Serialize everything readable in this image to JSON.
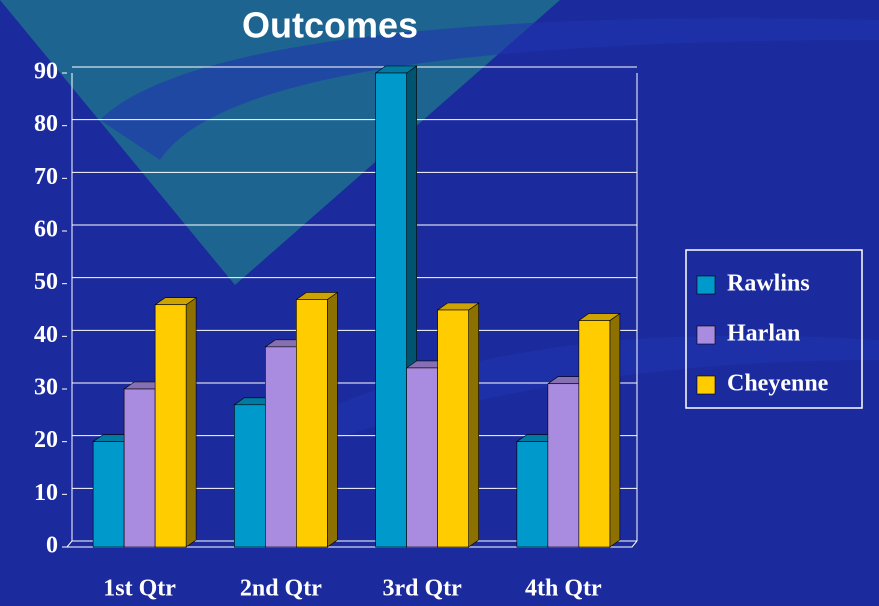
{
  "chart_data": {
    "type": "bar3d",
    "title": "Outcomes",
    "categories": [
      "1st Qtr",
      "2nd Qtr",
      "3rd Qtr",
      "4th Qtr"
    ],
    "series": [
      {
        "name": "Rawlins",
        "color": "#0099cc",
        "values": [
          20,
          27,
          90,
          20
        ]
      },
      {
        "name": "Harlan",
        "color": "#a98be0",
        "values": [
          30,
          38,
          34,
          31
        ]
      },
      {
        "name": "Cheyenne",
        "color": "#ffcc00",
        "values": [
          46,
          47,
          45,
          43
        ]
      }
    ],
    "ylim": [
      0,
      90
    ],
    "yticks": [
      0,
      10,
      20,
      30,
      40,
      50,
      60,
      70,
      80,
      90
    ],
    "grid": true,
    "legend": "right"
  }
}
